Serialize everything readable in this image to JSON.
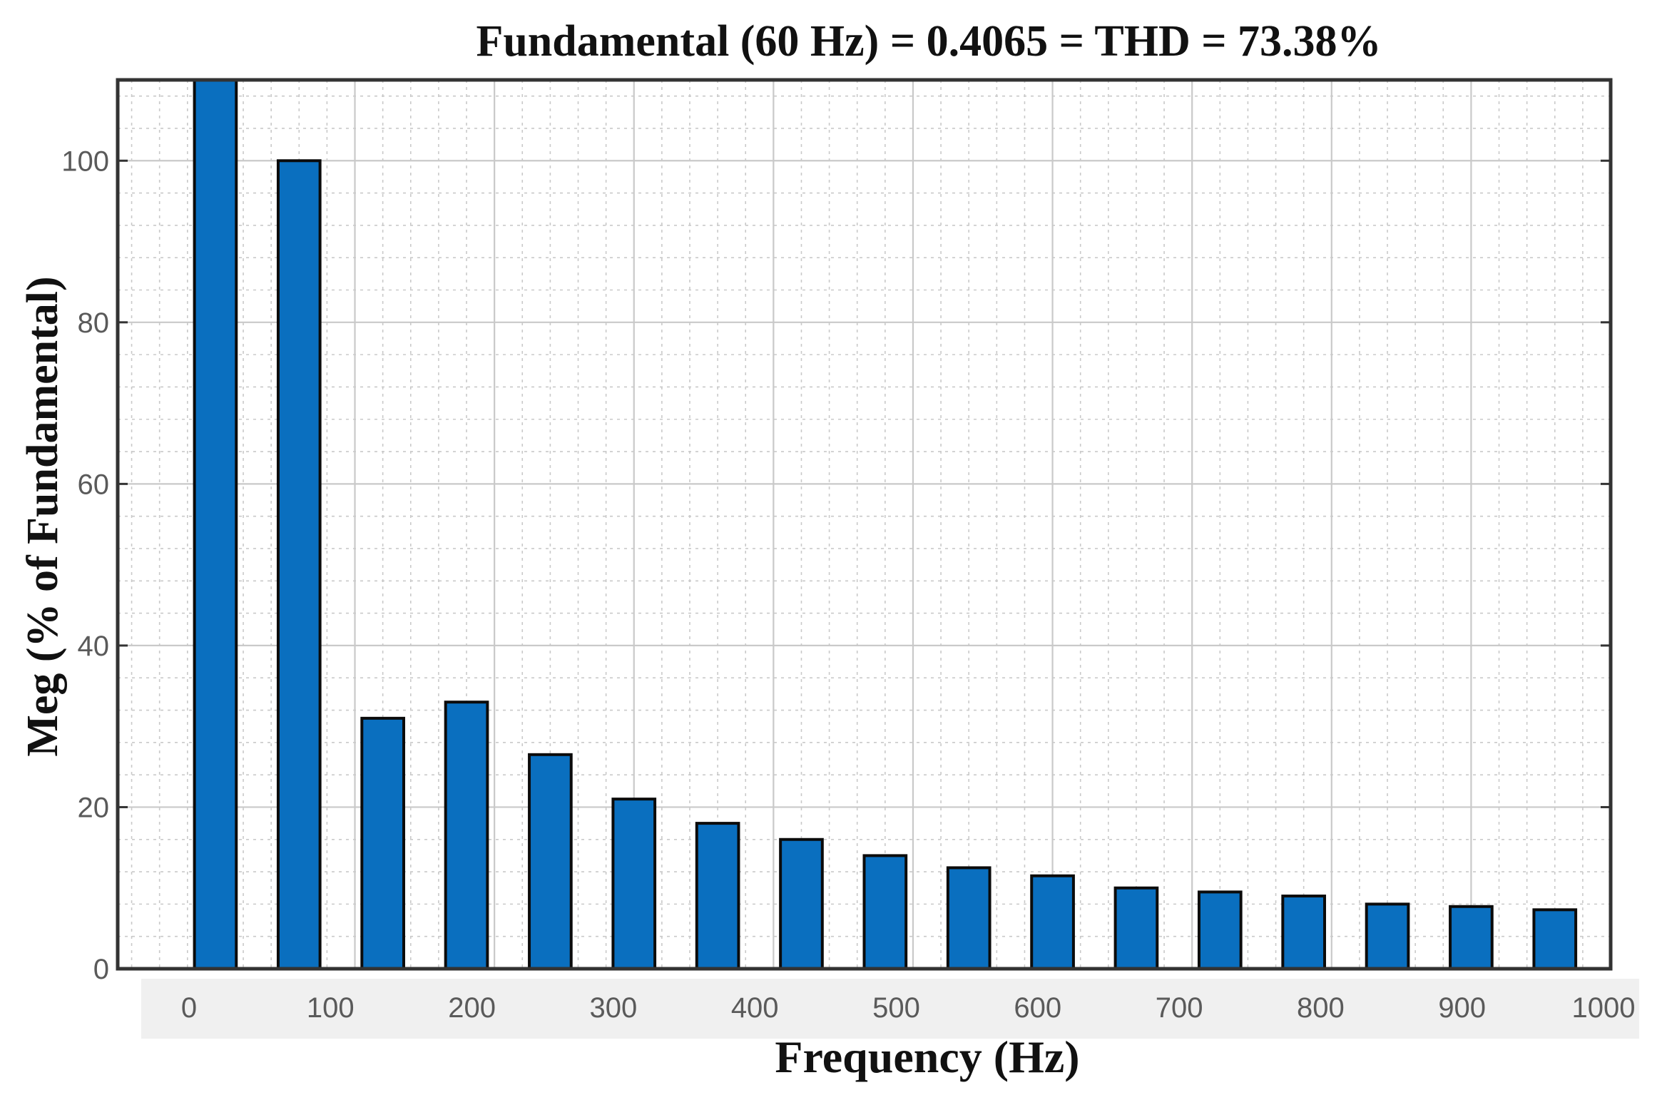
{
  "chart_data": {
    "type": "bar",
    "title": "Fundamental (60 Hz) = 0.4065 = THD = 73.38%",
    "xlabel": "Frequency (Hz)",
    "ylabel": "Meg (% of Fundamental)",
    "x": [
      0,
      60,
      120,
      180,
      240,
      300,
      360,
      420,
      480,
      540,
      600,
      660,
      720,
      780,
      840,
      900,
      960
    ],
    "values": [
      110,
      100,
      31,
      33,
      26.5,
      21,
      18,
      16,
      14,
      12.5,
      11.5,
      10,
      9.5,
      9,
      8,
      7.7,
      7.3
    ],
    "xlim": [
      -70,
      1000
    ],
    "ylim": [
      0,
      110
    ],
    "xticks": [
      0,
      100,
      200,
      300,
      400,
      500,
      600,
      700,
      800,
      900,
      1000
    ],
    "xtick_labels": [
      "0",
      "100",
      "200",
      "300",
      "400",
      "500",
      "600",
      "700",
      "800",
      "900",
      "1000"
    ],
    "yticks": [
      0,
      20,
      40,
      60,
      80,
      100
    ],
    "ytick_labels": [
      "0",
      "20",
      "40",
      "60",
      "80",
      "100"
    ],
    "grid": true,
    "bar_color": "#0a6fbf",
    "bar_edge_color": "#0b0b0b",
    "axes_color": "#333333",
    "grid_color": "#c9c9c9",
    "tick_band_color": "#f0f0f0"
  }
}
